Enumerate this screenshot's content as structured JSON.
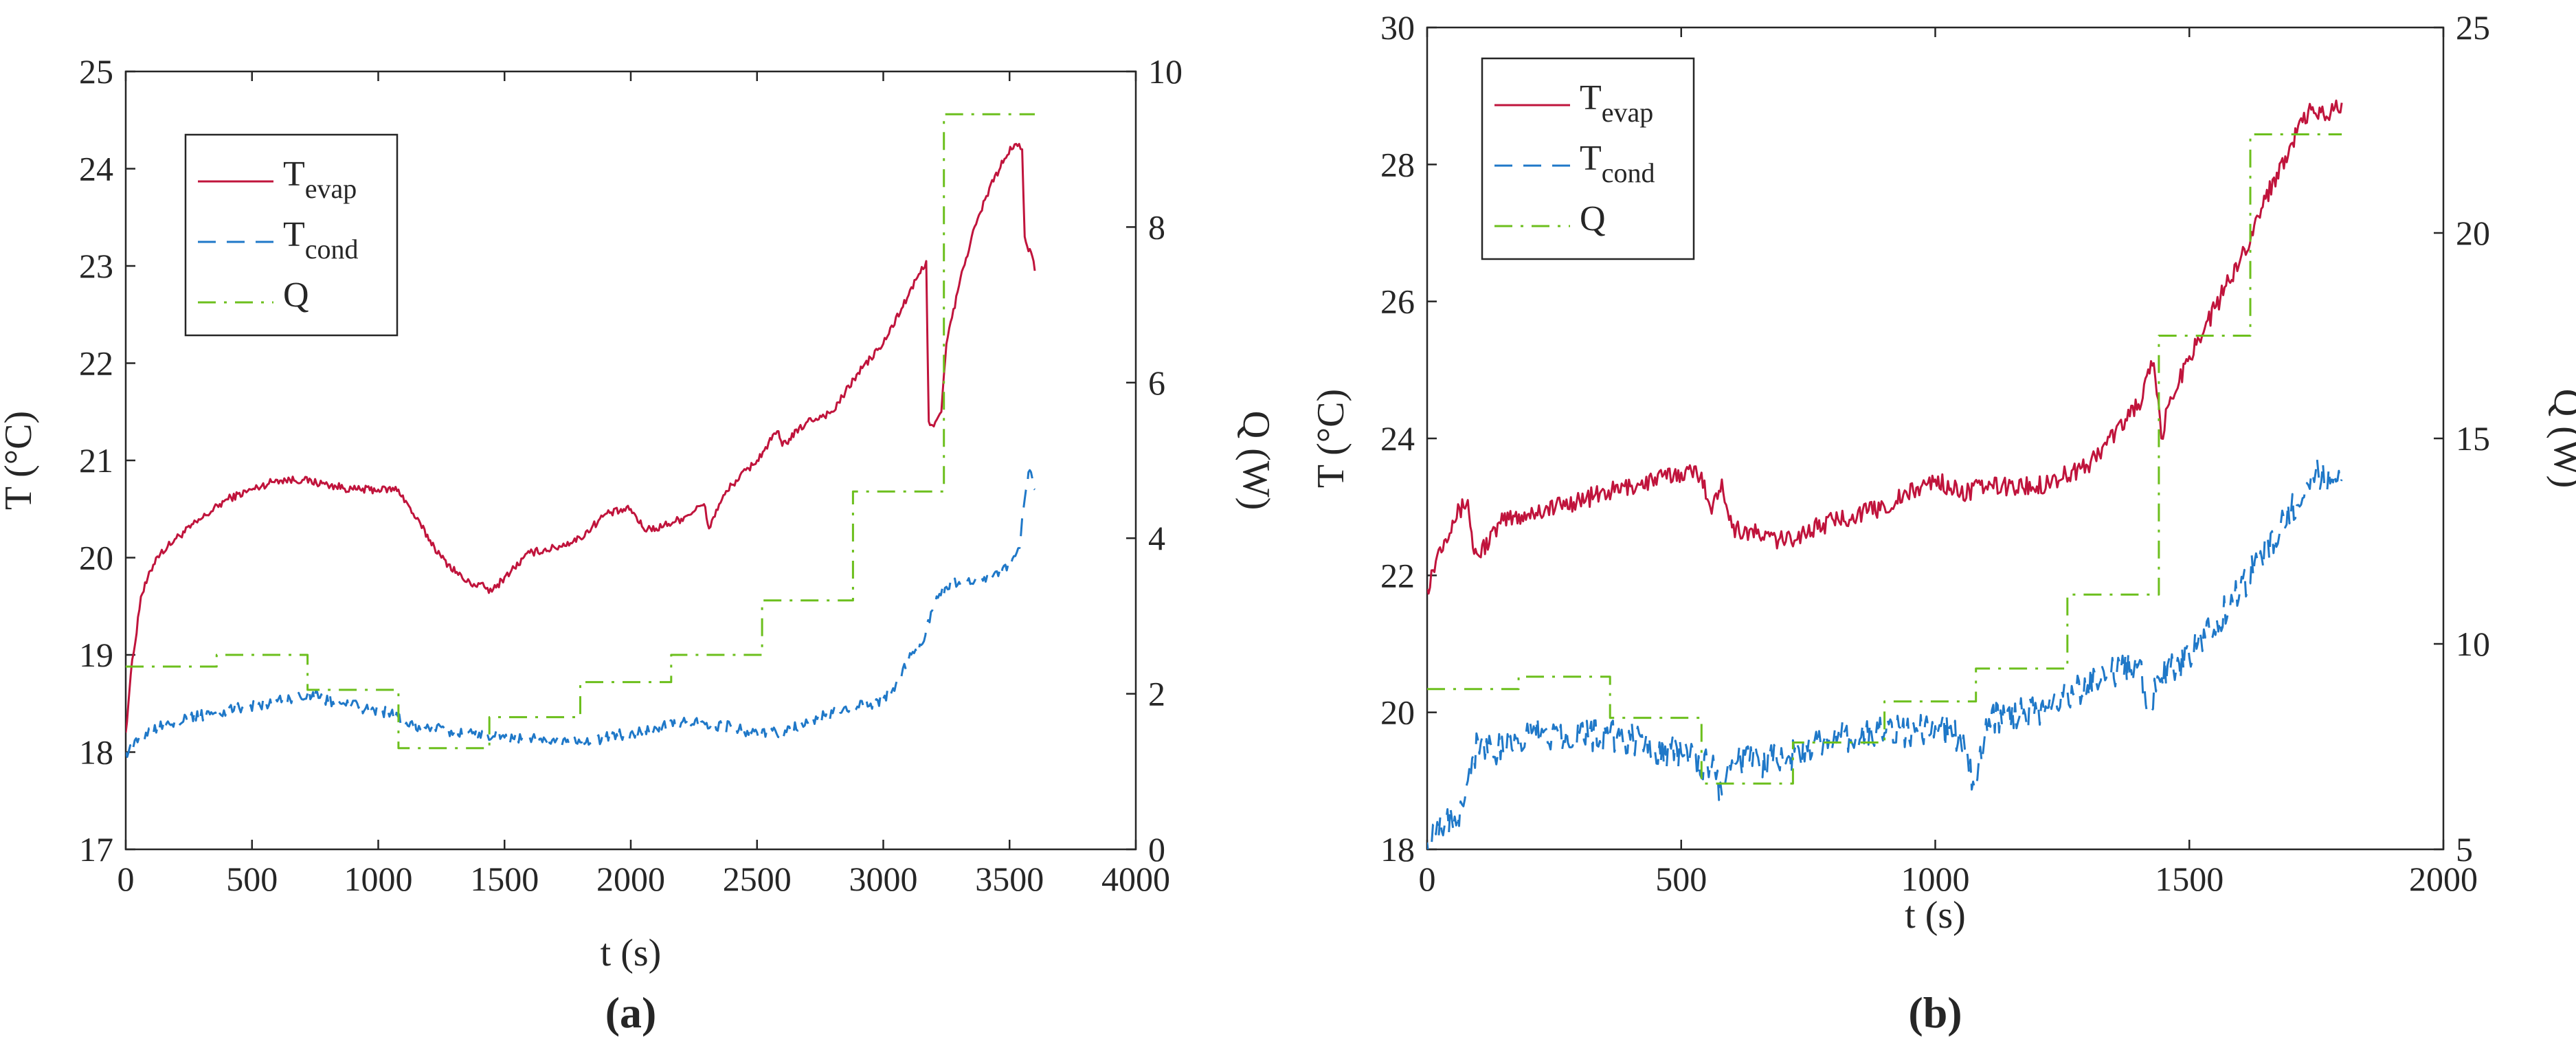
{
  "panels": [
    {
      "label_open": "(",
      "label_letter": "a",
      "label_close": ")",
      "chart": {
        "type": "line",
        "xlabel": "t (s)",
        "ylabel_left": "T (°C)",
        "ylabel_right": "Q (W)",
        "xlim": [
          0,
          4000
        ],
        "ylim_left": [
          17,
          25
        ],
        "ylim_right": [
          0,
          10
        ],
        "xticks": [
          0,
          500,
          1000,
          1500,
          2000,
          2500,
          3000,
          3500,
          4000
        ],
        "yticks_left": [
          17,
          18,
          19,
          20,
          21,
          22,
          23,
          24,
          25
        ],
        "yticks_right": [
          0,
          2,
          4,
          6,
          8,
          10
        ],
        "legend_position": "top-left",
        "grid": false
      },
      "legend": [
        {
          "id": "t_evap",
          "base": "T",
          "sub": "evap",
          "color": "#c0143c",
          "dash": "none"
        },
        {
          "id": "t_cond",
          "base": "T",
          "sub": "cond",
          "color": "#1f78c8",
          "dash": "26 16"
        },
        {
          "id": "q",
          "base": "Q",
          "sub": "",
          "color": "#6cbf1d",
          "dash": "26 12 4 12"
        }
      ],
      "series": [
        {
          "ref": "t_evap",
          "axis": "left",
          "noise": 0.04,
          "x": [
            0,
            20,
            60,
            120,
            200,
            300,
            400,
            500,
            600,
            700,
            800,
            900,
            1000,
            1080,
            1150,
            1250,
            1350,
            1420,
            1450,
            1500,
            1600,
            1700,
            1800,
            1900,
            2000,
            2050,
            2100,
            2200,
            2290,
            2310,
            2350,
            2400,
            2500,
            2580,
            2600,
            2700,
            2800,
            2900,
            3000,
            3100,
            3170,
            3180,
            3200,
            3230,
            3250,
            3300,
            3350,
            3420,
            3480,
            3520,
            3550,
            3560,
            3570,
            3590,
            3600
          ],
          "y": [
            18.2,
            18.8,
            19.6,
            20.0,
            20.2,
            20.4,
            20.6,
            20.7,
            20.8,
            20.8,
            20.75,
            20.7,
            20.7,
            20.7,
            20.4,
            20.0,
            19.75,
            19.7,
            19.65,
            19.8,
            20.05,
            20.1,
            20.2,
            20.45,
            20.5,
            20.3,
            20.3,
            20.4,
            20.55,
            20.3,
            20.55,
            20.75,
            21.0,
            21.3,
            21.15,
            21.4,
            21.5,
            21.9,
            22.2,
            22.7,
            23.05,
            21.4,
            21.35,
            21.5,
            22.2,
            22.8,
            23.3,
            23.8,
            24.1,
            24.25,
            24.2,
            23.3,
            23.2,
            23.1,
            22.95
          ]
        },
        {
          "ref": "t_cond",
          "axis": "left",
          "noise": 0.06,
          "x": [
            0,
            30,
            80,
            150,
            250,
            350,
            450,
            550,
            650,
            720,
            780,
            850,
            950,
            1050,
            1100,
            1200,
            1300,
            1400,
            1500,
            1600,
            1700,
            1800,
            1900,
            2000,
            2100,
            2200,
            2300,
            2400,
            2500,
            2600,
            2700,
            2800,
            2880,
            2950,
            3000,
            3050,
            3100,
            3150,
            3200,
            3250,
            3300,
            3400,
            3500,
            3540,
            3560,
            3580,
            3600
          ],
          "y": [
            18.0,
            18.05,
            18.2,
            18.3,
            18.35,
            18.4,
            18.45,
            18.5,
            18.55,
            18.6,
            18.55,
            18.5,
            18.45,
            18.4,
            18.3,
            18.25,
            18.2,
            18.2,
            18.15,
            18.15,
            18.1,
            18.1,
            18.15,
            18.2,
            18.25,
            18.3,
            18.3,
            18.25,
            18.2,
            18.2,
            18.3,
            18.4,
            18.45,
            18.5,
            18.55,
            18.7,
            18.95,
            19.1,
            19.5,
            19.7,
            19.75,
            19.8,
            19.9,
            20.1,
            20.6,
            20.9,
            20.7
          ]
        },
        {
          "ref": "q",
          "axis": "right",
          "noise": 0,
          "x": [
            0,
            360,
            360,
            720,
            720,
            1080,
            1080,
            1440,
            1440,
            1800,
            1800,
            2160,
            2160,
            2520,
            2520,
            2880,
            2880,
            3240,
            3240,
            3600
          ],
          "y": [
            2.35,
            2.35,
            2.5,
            2.5,
            2.05,
            2.05,
            1.3,
            1.3,
            1.7,
            1.7,
            2.15,
            2.15,
            2.5,
            2.5,
            3.2,
            3.2,
            4.6,
            4.6,
            9.45,
            9.45
          ]
        }
      ]
    },
    {
      "label_open": "(",
      "label_letter": "b",
      "label_close": ")",
      "chart": {
        "type": "line",
        "xlabel": "t (s)",
        "ylabel_left": "T (°C)",
        "ylabel_right": "Q (W)",
        "xlim": [
          0,
          2000
        ],
        "ylim_left": [
          18,
          30
        ],
        "ylim_right": [
          5,
          25
        ],
        "xticks": [
          0,
          500,
          1000,
          1500,
          2000
        ],
        "yticks_left": [
          18,
          20,
          22,
          24,
          26,
          28,
          30
        ],
        "yticks_right": [
          5,
          10,
          15,
          20,
          25
        ],
        "legend_position": "top-left",
        "grid": false
      },
      "legend": [
        {
          "id": "t_evap",
          "base": "T",
          "sub": "evap",
          "color": "#c0143c",
          "dash": "none"
        },
        {
          "id": "t_cond",
          "base": "T",
          "sub": "cond",
          "color": "#1f78c8",
          "dash": "26 16"
        },
        {
          "id": "q",
          "base": "Q",
          "sub": "",
          "color": "#6cbf1d",
          "dash": "26 12 4 12"
        }
      ],
      "series": [
        {
          "ref": "t_evap",
          "axis": "left",
          "noise": 0.14,
          "x": [
            0,
            20,
            50,
            80,
            90,
            100,
            150,
            200,
            300,
            400,
            500,
            540,
            560,
            580,
            600,
            700,
            800,
            900,
            1000,
            1050,
            1100,
            1200,
            1300,
            1400,
            1430,
            1445,
            1460,
            1500,
            1550,
            1600,
            1650,
            1700,
            1740,
            1770,
            1800
          ],
          "y": [
            21.8,
            22.3,
            22.8,
            23.1,
            22.4,
            22.3,
            22.8,
            22.9,
            23.1,
            23.3,
            23.5,
            23.5,
            22.9,
            23.4,
            22.7,
            22.5,
            22.8,
            23.0,
            23.4,
            23.2,
            23.3,
            23.3,
            23.6,
            24.5,
            25.1,
            24.0,
            24.5,
            25.2,
            25.9,
            26.6,
            27.5,
            28.3,
            28.8,
            28.7,
            28.9
          ]
        },
        {
          "ref": "t_cond",
          "axis": "left",
          "noise": 0.25,
          "x": [
            0,
            20,
            60,
            80,
            100,
            150,
            200,
            300,
            400,
            500,
            560,
            580,
            600,
            700,
            800,
            900,
            1000,
            1050,
            1080,
            1100,
            1200,
            1300,
            1400,
            1420,
            1440,
            1500,
            1600,
            1700,
            1740,
            1780,
            1800
          ],
          "y": [
            18.1,
            18.4,
            18.5,
            19.0,
            19.6,
            19.4,
            19.7,
            19.7,
            19.6,
            19.4,
            19.2,
            18.8,
            19.3,
            19.3,
            19.6,
            19.7,
            19.8,
            19.6,
            18.9,
            19.9,
            20.0,
            20.4,
            20.7,
            20.0,
            20.5,
            20.8,
            21.8,
            22.9,
            23.5,
            23.4,
            23.4
          ]
        },
        {
          "ref": "q",
          "axis": "right",
          "noise": 0,
          "x": [
            0,
            180,
            180,
            360,
            360,
            540,
            540,
            720,
            720,
            900,
            900,
            1080,
            1080,
            1260,
            1260,
            1440,
            1440,
            1620,
            1620,
            1800
          ],
          "y": [
            8.9,
            8.9,
            9.2,
            9.2,
            8.2,
            8.2,
            6.6,
            6.6,
            7.6,
            7.6,
            8.6,
            8.6,
            9.4,
            9.4,
            11.2,
            11.2,
            17.5,
            17.5,
            22.4,
            22.4
          ]
        }
      ]
    }
  ]
}
